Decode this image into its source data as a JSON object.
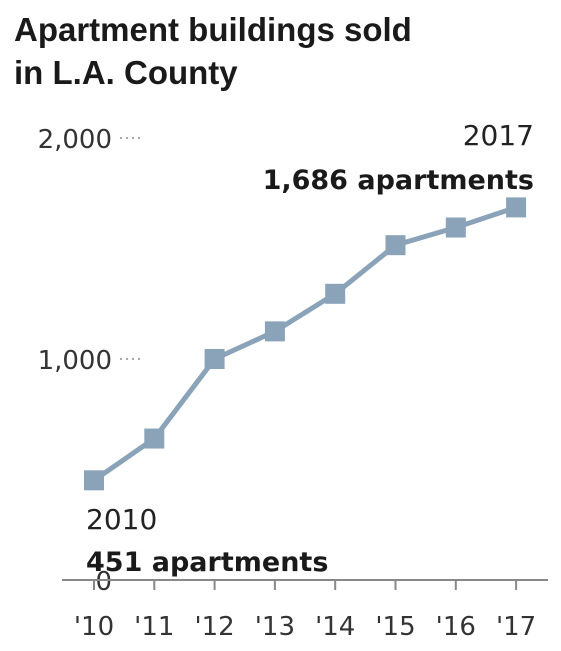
{
  "chart_data": {
    "type": "line",
    "title": [
      "Apartment buildings sold",
      "in L.A. County"
    ],
    "categories": [
      "'10",
      "'11",
      "'12",
      "'13",
      "'14",
      "'15",
      "'16",
      "'17"
    ],
    "series": [
      {
        "values": [
          451,
          640,
          1000,
          1125,
          1295,
          1515,
          1595,
          1686
        ]
      }
    ],
    "yticks": [
      {
        "value": 0,
        "label": "0"
      },
      {
        "value": 1000,
        "label": "1,000"
      },
      {
        "value": 2000,
        "label": "2,000"
      }
    ],
    "ylim": [
      0,
      2000
    ],
    "annotations": [
      {
        "year": "2010",
        "label": "451 apartments"
      },
      {
        "year": "2017",
        "label": "1,686 apartments"
      }
    ],
    "grid": false,
    "legend": "none",
    "colors": {
      "line": "#8aa3b8",
      "axis": "#888888",
      "dots": "#aaaaaa"
    }
  }
}
